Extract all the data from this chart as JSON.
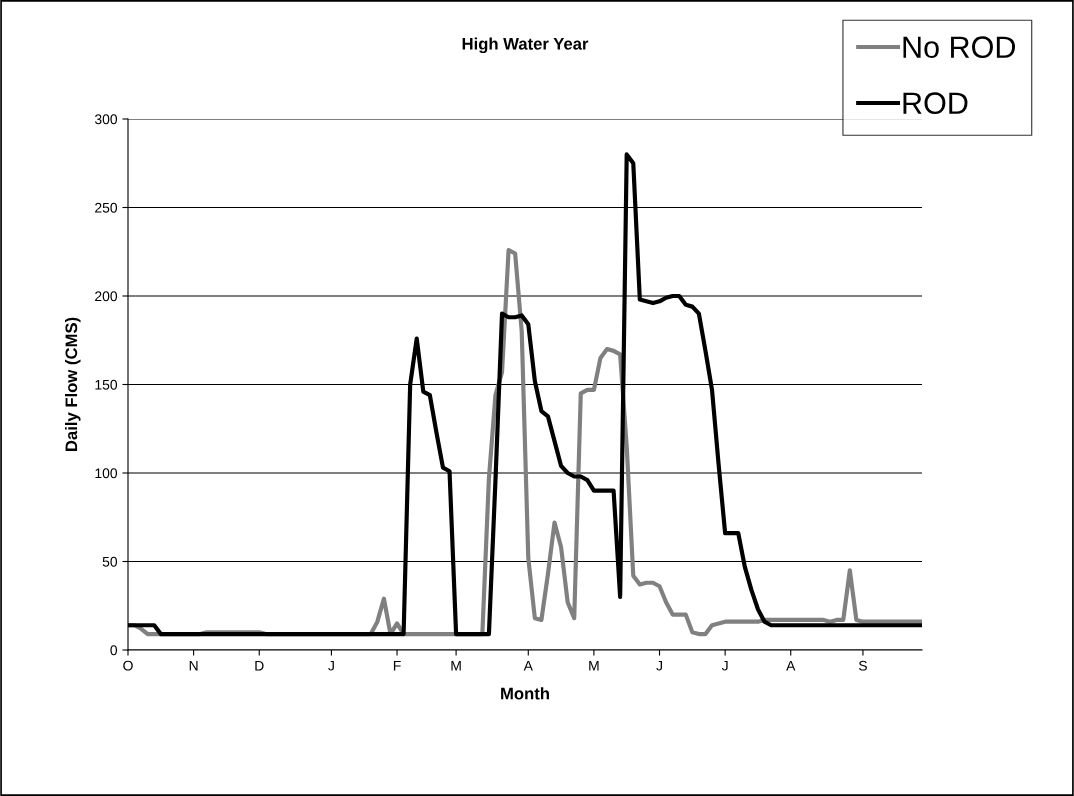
{
  "chart_data": {
    "type": "line",
    "title": "High Water Year",
    "xlabel": "Month",
    "ylabel": "Daily Flow (CMS)",
    "ylim": [
      0,
      300
    ],
    "yticks": [
      0,
      50,
      100,
      150,
      200,
      250,
      300
    ],
    "categories": [
      "O",
      null,
      null,
      null,
      null,
      null,
      null,
      null,
      null,
      null,
      "N",
      null,
      null,
      null,
      null,
      null,
      null,
      null,
      null,
      null,
      "D",
      null,
      null,
      null,
      null,
      null,
      null,
      null,
      null,
      null,
      null,
      "J",
      null,
      null,
      null,
      null,
      null,
      null,
      null,
      null,
      null,
      "F",
      null,
      null,
      null,
      null,
      null,
      null,
      null,
      null,
      "M",
      null,
      null,
      null,
      null,
      null,
      null,
      null,
      null,
      null,
      null,
      "A",
      null,
      null,
      null,
      null,
      null,
      null,
      null,
      null,
      null,
      "M",
      null,
      null,
      null,
      null,
      null,
      null,
      null,
      null,
      null,
      "J",
      null,
      null,
      null,
      null,
      null,
      null,
      null,
      null,
      null,
      "J",
      null,
      null,
      null,
      null,
      null,
      null,
      null,
      null,
      null,
      "A",
      null,
      null,
      null,
      null,
      null,
      null,
      null,
      null,
      null,
      null,
      "S",
      null,
      null,
      null,
      null,
      null,
      null,
      null,
      null,
      null
    ],
    "grid": "y",
    "legend": "top right",
    "marker": "none",
    "line_style": "solid",
    "series": [
      {
        "name": "No ROD",
        "color": "#808080",
        "values": [
          14,
          14,
          12,
          9,
          9,
          9,
          9,
          9,
          9,
          9,
          9,
          9,
          10,
          10,
          10,
          10,
          10,
          10,
          10,
          10,
          10,
          9,
          9,
          9,
          9,
          9,
          9,
          9,
          9,
          9,
          9,
          9,
          9,
          9,
          9,
          9,
          9,
          9,
          16,
          29,
          9,
          15,
          9,
          9,
          9,
          9,
          9,
          9,
          9,
          9,
          9,
          9,
          9,
          9,
          9,
          97,
          144,
          157,
          226,
          224,
          180,
          52,
          18,
          17,
          43,
          72,
          58,
          27,
          18,
          145,
          147,
          147,
          165,
          170,
          169,
          167,
          115,
          42,
          37,
          38,
          38,
          36,
          27,
          20,
          20,
          20,
          10,
          9,
          9,
          14,
          15,
          16,
          16,
          16,
          16,
          16,
          16,
          17,
          17,
          17,
          17,
          17,
          17,
          17,
          17,
          17,
          17,
          16,
          17,
          17,
          45,
          17,
          16,
          16,
          16,
          16,
          16,
          16,
          16,
          16,
          16,
          16
        ]
      },
      {
        "name": "ROD",
        "color": "#000000",
        "values": [
          14,
          14,
          14,
          14,
          14,
          9,
          9,
          9,
          9,
          9,
          9,
          9,
          9,
          9,
          9,
          9,
          9,
          9,
          9,
          9,
          9,
          9,
          9,
          9,
          9,
          9,
          9,
          9,
          9,
          9,
          9,
          9,
          9,
          9,
          9,
          9,
          9,
          9,
          9,
          9,
          9,
          9,
          9,
          150,
          176,
          146,
          144,
          123,
          103,
          101,
          9,
          9,
          9,
          9,
          9,
          9,
          96,
          190,
          188,
          188,
          189,
          184,
          152,
          135,
          132,
          118,
          104,
          100,
          98,
          98,
          96,
          90,
          90,
          90,
          90,
          30,
          280,
          275,
          198,
          197,
          196,
          197,
          199,
          200,
          200,
          195,
          194,
          190,
          169,
          147,
          105,
          66,
          66,
          66,
          47,
          34,
          23,
          16,
          14,
          14,
          14,
          14,
          14,
          14,
          14,
          14,
          14,
          14,
          14,
          14,
          14,
          14,
          14,
          14,
          14,
          14,
          14,
          14,
          14,
          14,
          14,
          14
        ]
      }
    ]
  }
}
